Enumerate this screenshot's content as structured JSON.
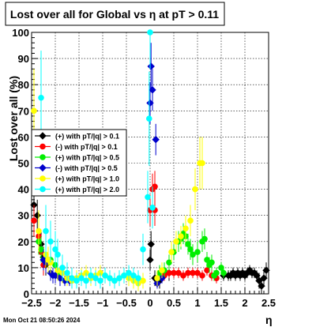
{
  "chart_data": {
    "type": "scatter",
    "title": "Lost over all for Global vs    η at pT > 0.11",
    "xlabel": "η",
    "ylabel": "Lost over all (%)",
    "xlim": [
      -2.5,
      2.5
    ],
    "ylim": [
      0,
      100
    ],
    "x_ticks": [
      -2.5,
      -2,
      -1.5,
      -1,
      -0.5,
      0,
      0.5,
      1,
      1.5,
      2,
      2.5
    ],
    "x_tick_labels": [
      "−2.5",
      "−2",
      "−1.5",
      "−1",
      "−0.5",
      "0",
      "0.5",
      "1",
      "1.5",
      "2",
      "2.5"
    ],
    "y_ticks": [
      0,
      10,
      20,
      30,
      40,
      50,
      60,
      70,
      80,
      90,
      100
    ],
    "y_tick_labels": [
      "0",
      "10",
      "20",
      "30",
      "40",
      "50",
      "60",
      "70",
      "80",
      "90",
      "100"
    ],
    "grid": true,
    "legend_position": "left",
    "footer": "Mon Oct 21 08:50:26 2024",
    "series": [
      {
        "name": "(+) with pT/|q| > 0.1",
        "color": "#000000",
        "points": [
          [
            -2.45,
            34
          ],
          [
            -2.38,
            30
          ],
          [
            -2.3,
            19
          ],
          [
            -2.25,
            14
          ],
          [
            -2.2,
            11
          ],
          [
            0,
            13
          ],
          [
            0.02,
            19
          ],
          [
            0.1,
            6
          ],
          [
            0.2,
            5
          ],
          [
            0.4,
            8
          ],
          [
            1.55,
            7
          ],
          [
            1.65,
            7
          ],
          [
            1.7,
            7
          ],
          [
            1.75,
            8
          ],
          [
            1.8,
            7
          ],
          [
            1.85,
            8
          ],
          [
            1.9,
            7
          ],
          [
            1.95,
            8
          ],
          [
            2.0,
            7
          ],
          [
            2.05,
            8
          ],
          [
            2.1,
            9
          ],
          [
            2.15,
            8
          ],
          [
            2.2,
            8
          ],
          [
            2.25,
            7
          ],
          [
            2.3,
            5
          ],
          [
            2.35,
            3
          ],
          [
            2.4,
            6
          ],
          [
            2.45,
            9
          ]
        ],
        "errors": [
          6,
          6,
          5,
          4,
          4,
          4,
          5,
          3,
          3,
          3,
          2,
          2,
          2,
          2,
          2,
          2,
          2,
          2,
          2,
          2,
          2,
          2,
          2,
          2,
          3,
          3,
          3,
          3
        ]
      },
      {
        "name": "(-) with pT/|q| > 0.1",
        "color": "#ff0000",
        "points": [
          [
            -2.45,
            28
          ],
          [
            -2.35,
            22
          ],
          [
            -2.3,
            16
          ],
          [
            -2.25,
            11
          ],
          [
            0.0,
            32
          ],
          [
            0.1,
            32
          ],
          [
            0.3,
            7
          ],
          [
            0.4,
            8
          ],
          [
            0.5,
            8
          ],
          [
            0.6,
            8
          ],
          [
            0.7,
            7
          ],
          [
            0.8,
            8
          ],
          [
            0.9,
            8
          ],
          [
            1.0,
            8
          ],
          [
            1.1,
            7
          ],
          [
            1.2,
            9
          ],
          [
            1.3,
            7
          ],
          [
            1.4,
            6
          ],
          [
            0.05,
            40
          ],
          [
            0.1,
            41
          ]
        ],
        "errors": [
          6,
          5,
          4,
          4,
          6,
          6,
          2,
          2,
          2,
          2,
          2,
          2,
          2,
          2,
          2,
          2,
          2,
          2,
          6,
          6
        ]
      },
      {
        "name": "(+) with pT/|q| > 0.5",
        "color": "#00ee00",
        "points": [
          [
            -2.35,
            20
          ],
          [
            -2.3,
            17
          ],
          [
            -2.2,
            14
          ],
          [
            -2.1,
            13
          ],
          [
            -2.0,
            11
          ],
          [
            -1.95,
            8
          ],
          [
            0.2,
            8
          ],
          [
            0.3,
            9
          ],
          [
            0.4,
            12
          ],
          [
            0.5,
            16
          ],
          [
            0.6,
            20
          ],
          [
            0.65,
            21
          ],
          [
            0.7,
            23
          ],
          [
            0.75,
            22
          ],
          [
            0.8,
            19
          ],
          [
            0.85,
            17
          ],
          [
            0.9,
            15
          ],
          [
            1.0,
            16
          ],
          [
            1.1,
            20
          ],
          [
            1.15,
            21
          ],
          [
            1.2,
            13
          ],
          [
            1.25,
            11
          ],
          [
            1.3,
            12
          ],
          [
            1.35,
            7
          ],
          [
            1.4,
            8
          ],
          [
            1.5,
            10
          ],
          [
            1.55,
            8
          ]
        ],
        "errors": [
          5,
          5,
          4,
          4,
          3,
          3,
          3,
          3,
          3,
          3,
          4,
          4,
          4,
          4,
          4,
          4,
          4,
          4,
          4,
          4,
          3,
          3,
          3,
          2,
          2,
          2,
          2
        ]
      },
      {
        "name": "(-) with pT/|q| > 0.5",
        "color": "#0000cc",
        "points": [
          [
            -2.25,
            13
          ],
          [
            -2.2,
            12
          ],
          [
            -2.1,
            8
          ],
          [
            -2.05,
            7
          ],
          [
            -2.0,
            7
          ],
          [
            -1.9,
            6
          ],
          [
            -1.8,
            5
          ],
          [
            -1.7,
            5
          ],
          [
            0.0,
            73
          ],
          [
            0.02,
            87
          ],
          [
            0.05,
            78
          ],
          [
            0.12,
            59
          ],
          [
            0.15,
            4
          ],
          [
            0.25,
            6
          ]
        ],
        "errors": [
          4,
          4,
          3,
          3,
          3,
          3,
          2,
          2,
          8,
          9,
          8,
          6,
          2,
          2
        ]
      },
      {
        "name": "(+) with pT/|q| > 1.0",
        "color": "#ffff00",
        "points": [
          [
            -2.45,
            70
          ],
          [
            -2.35,
            24
          ],
          [
            -2.2,
            15
          ],
          [
            -2.15,
            13
          ],
          [
            -2.1,
            12
          ],
          [
            -1.95,
            9
          ],
          [
            -1.85,
            8
          ],
          [
            -1.75,
            6
          ],
          [
            -1.65,
            5
          ],
          [
            -1.55,
            6
          ],
          [
            -1.45,
            7
          ],
          [
            -1.35,
            8
          ],
          [
            -1.25,
            6
          ],
          [
            -1.15,
            7
          ],
          [
            -1.05,
            8
          ],
          [
            -0.95,
            7
          ],
          [
            -0.85,
            6
          ],
          [
            -0.75,
            5
          ],
          [
            -0.65,
            6
          ],
          [
            -0.55,
            7
          ],
          [
            -0.45,
            6
          ],
          [
            -0.35,
            5
          ],
          [
            -0.25,
            4
          ],
          [
            -0.15,
            5
          ],
          [
            0.15,
            6
          ],
          [
            0.25,
            9
          ],
          [
            0.45,
            16
          ],
          [
            0.55,
            20
          ],
          [
            0.65,
            22
          ],
          [
            0.75,
            25
          ],
          [
            0.85,
            28
          ],
          [
            0.95,
            40
          ],
          [
            1.05,
            50
          ],
          [
            1.1,
            50
          ]
        ],
        "errors": [
          16,
          8,
          5,
          5,
          4,
          4,
          4,
          3,
          3,
          3,
          3,
          3,
          3,
          3,
          3,
          3,
          3,
          3,
          3,
          3,
          3,
          3,
          3,
          3,
          3,
          3,
          4,
          4,
          4,
          5,
          6,
          8,
          10,
          10
        ]
      },
      {
        "name": "(+) with pT/|q| > 2.0",
        "color": "#00ffff",
        "points": [
          [
            -2.3,
            75
          ],
          [
            -2.2,
            24
          ],
          [
            -2.1,
            20
          ],
          [
            -2.0,
            17
          ],
          [
            -1.95,
            15
          ],
          [
            -1.85,
            10
          ],
          [
            -1.75,
            8
          ],
          [
            -1.65,
            6
          ],
          [
            -1.55,
            5
          ],
          [
            -1.45,
            6
          ],
          [
            -1.35,
            5
          ],
          [
            -1.25,
            7
          ],
          [
            -1.15,
            6
          ],
          [
            -1.05,
            5
          ],
          [
            -0.95,
            7
          ],
          [
            -0.85,
            6
          ],
          [
            -0.75,
            5
          ],
          [
            -0.65,
            6
          ],
          [
            -0.55,
            7
          ],
          [
            -0.45,
            8
          ],
          [
            -0.35,
            7
          ],
          [
            -0.25,
            6
          ],
          [
            -0.15,
            17
          ],
          [
            -0.05,
            37
          ],
          [
            -0.02,
            67
          ],
          [
            0.0,
            100
          ],
          [
            0.05,
            33
          ]
        ],
        "errors": [
          18,
          10,
          8,
          7,
          6,
          5,
          4,
          4,
          3,
          3,
          3,
          3,
          3,
          3,
          3,
          3,
          3,
          3,
          3,
          3,
          3,
          3,
          6,
          10,
          18,
          14,
          8
        ]
      }
    ]
  }
}
